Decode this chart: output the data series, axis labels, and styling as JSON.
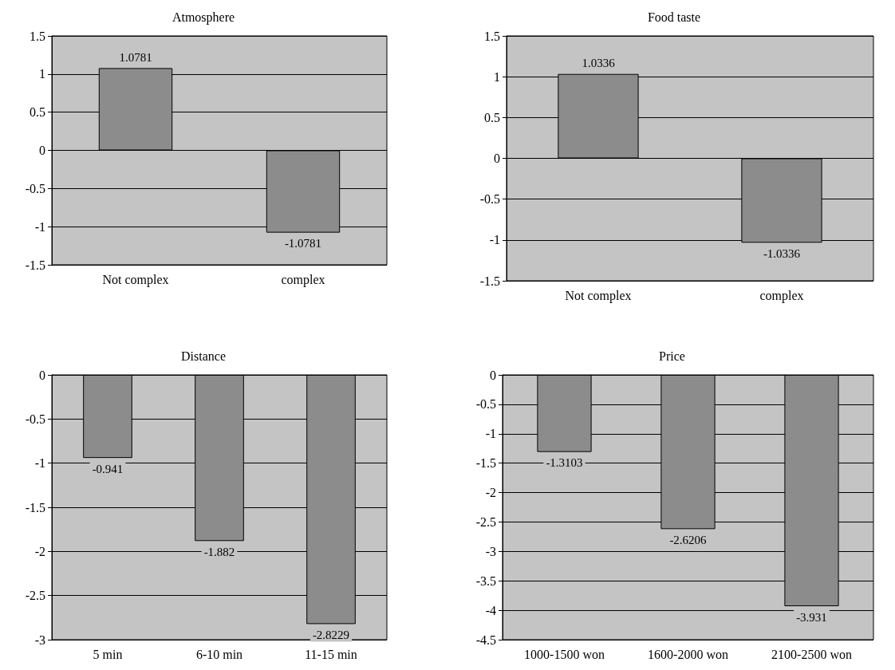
{
  "chart_data": [
    {
      "type": "bar",
      "title": "Atmosphere",
      "categories": [
        "Not complex",
        "complex"
      ],
      "values": [
        1.0781,
        -1.0781
      ],
      "color": "#8c8c8c",
      "ylim": [
        -1.5,
        1.5
      ],
      "yticks": [
        -1.5,
        -1,
        -0.5,
        0,
        0.5,
        1,
        1.5
      ],
      "grid": "y",
      "data_labels": true
    },
    {
      "type": "bar",
      "title": "Food taste",
      "categories": [
        "Not complex",
        "complex"
      ],
      "values": [
        1.0336,
        -1.0336
      ],
      "color": "#8c8c8c",
      "ylim": [
        -1.5,
        1.5
      ],
      "yticks": [
        -1.5,
        -1,
        -0.5,
        0,
        0.5,
        1,
        1.5
      ],
      "grid": "y",
      "data_labels": true
    },
    {
      "type": "bar",
      "title": "Distance",
      "categories": [
        "5 min",
        "6-10 min",
        "11-15 min"
      ],
      "values": [
        -0.941,
        -1.882,
        -2.8229
      ],
      "color": "#8c8c8c",
      "ylim": [
        -3,
        0
      ],
      "yticks": [
        -3,
        -2.5,
        -2,
        -1.5,
        -1,
        -0.5,
        0
      ],
      "grid": "y",
      "data_labels": true
    },
    {
      "type": "bar",
      "title": "Price",
      "categories": [
        "1000-1500 won",
        "1600-2000 won",
        "2100-2500 won"
      ],
      "values": [
        -1.3103,
        -2.6206,
        -3.931
      ],
      "color": "#8c8c8c",
      "ylim": [
        -4.5,
        0
      ],
      "yticks": [
        -4.5,
        -4,
        -3.5,
        -3,
        -2.5,
        -2,
        -1.5,
        -1,
        -0.5,
        0
      ],
      "grid": "y",
      "data_labels": true
    }
  ]
}
